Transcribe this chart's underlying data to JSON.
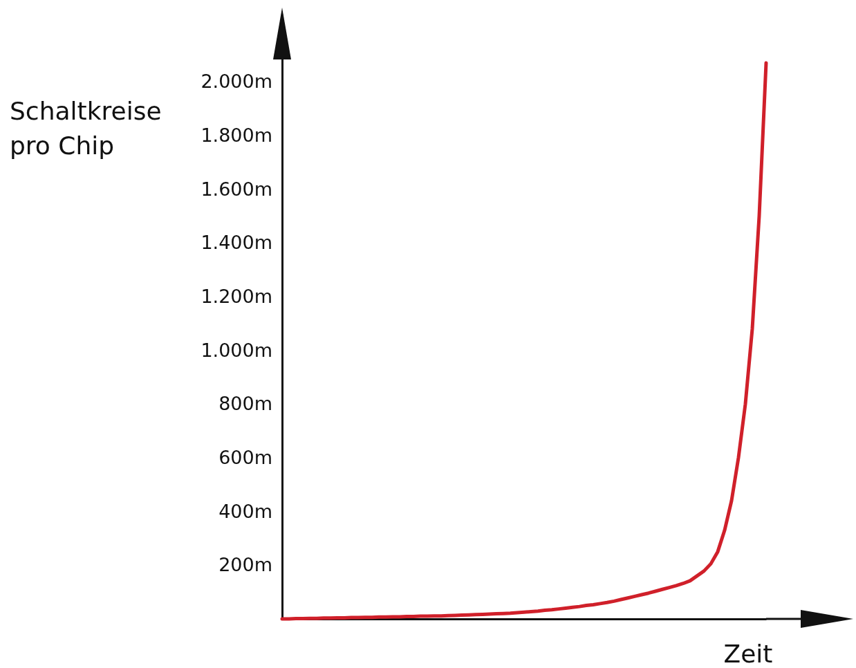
{
  "chart_data": {
    "type": "line",
    "ylabel": "Schaltkreise pro Chip",
    "xlabel": "Zeit",
    "categories": [
      null,
      null,
      null,
      null,
      null,
      null,
      null,
      null,
      null,
      null,
      null,
      null,
      null,
      null,
      null,
      null,
      null,
      null,
      null,
      null,
      null,
      null,
      null,
      null,
      null,
      null,
      null,
      null,
      null,
      null,
      null,
      null,
      null,
      null,
      null,
      null,
      null,
      null,
      null,
      null,
      null,
      null,
      null,
      null,
      null,
      null,
      null,
      null,
      null,
      null,
      null,
      null,
      null,
      null,
      null,
      null,
      null,
      null,
      null,
      null,
      null,
      null,
      null,
      null,
      null,
      null,
      null,
      null,
      null,
      null,
      null
    ],
    "series": [
      {
        "color": "#d0202a",
        "values": [
          0,
          0,
          1,
          1,
          2,
          2,
          3,
          3,
          4,
          4,
          5,
          5,
          6,
          6,
          7,
          7,
          8,
          8,
          9,
          9,
          10,
          10,
          11,
          11,
          12,
          13,
          14,
          15,
          16,
          17,
          18,
          19,
          20,
          21,
          23,
          25,
          27,
          29,
          32,
          34,
          37,
          40,
          43,
          46,
          50,
          53,
          57,
          61,
          66,
          72,
          78,
          84,
          90,
          96,
          103,
          110,
          117,
          124,
          132,
          142,
          160,
          178,
          205,
          250,
          330,
          440,
          600,
          800,
          1080,
          1500,
          2070
        ]
      }
    ],
    "ylim": [
      0,
      2250
    ],
    "yticks": [
      {
        "value": 200,
        "label": "200m"
      },
      {
        "value": 400,
        "label": "400m"
      },
      {
        "value": 600,
        "label": "600m"
      },
      {
        "value": 800,
        "label": "800m"
      },
      {
        "value": 1000,
        "label": "1.000m"
      },
      {
        "value": 1200,
        "label": "1.200m"
      },
      {
        "value": 1400,
        "label": "1.400m"
      },
      {
        "value": 1600,
        "label": "1.600m"
      },
      {
        "value": 1800,
        "label": "1.800m"
      },
      {
        "value": 2000,
        "label": "2.000m"
      }
    ],
    "grid": false,
    "marker": "none",
    "line_style": "solid"
  }
}
